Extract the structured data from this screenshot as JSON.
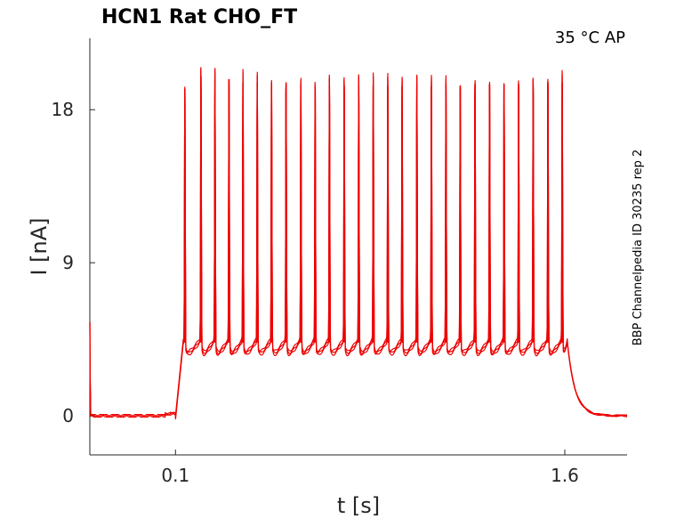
{
  "chart_data": {
    "type": "line",
    "title": "HCN1  Rat  CHO_FT",
    "condition": "35 °C  AP",
    "side_label": "BBP Channelpedia ID 30235 rep 2",
    "xlabel": "t [s]",
    "ylabel": "I [nA]",
    "xlim": [
      -0.23,
      1.84
    ],
    "ylim": [
      -2.3,
      22.2
    ],
    "x_ticks": [
      0.1,
      1.6
    ],
    "x_tick_labels": [
      "0.1",
      "1.6"
    ],
    "y_ticks": [
      0,
      9,
      18
    ],
    "y_tick_labels": [
      "0",
      "9",
      "18"
    ],
    "line_color": "#ee0000",
    "grid": false,
    "series": [
      {
        "stimulus_start": 0.1,
        "stimulus_end": 1.61,
        "baseline": 0.0,
        "plateau": 4.2,
        "trough": 3.9,
        "spike_times": [
          0.136,
          0.198,
          0.252,
          0.306,
          0.36,
          0.415,
          0.47,
          0.526,
          0.583,
          0.638,
          0.693,
          0.75,
          0.806,
          0.862,
          0.918,
          0.973,
          1.03,
          1.086,
          1.142,
          1.197,
          1.254,
          1.31,
          1.366,
          1.422,
          1.478,
          1.535,
          1.59
        ],
        "spike_peaks": [
          19.2,
          20.0,
          19.8,
          19.8,
          19.6,
          19.6,
          19.5,
          19.5,
          19.5,
          19.4,
          19.4,
          19.4,
          19.4,
          19.4,
          19.4,
          19.4,
          19.4,
          19.4,
          19.5,
          19.4,
          19.5,
          19.5,
          19.5,
          19.5,
          19.5,
          19.6,
          19.6
        ]
      }
    ]
  }
}
